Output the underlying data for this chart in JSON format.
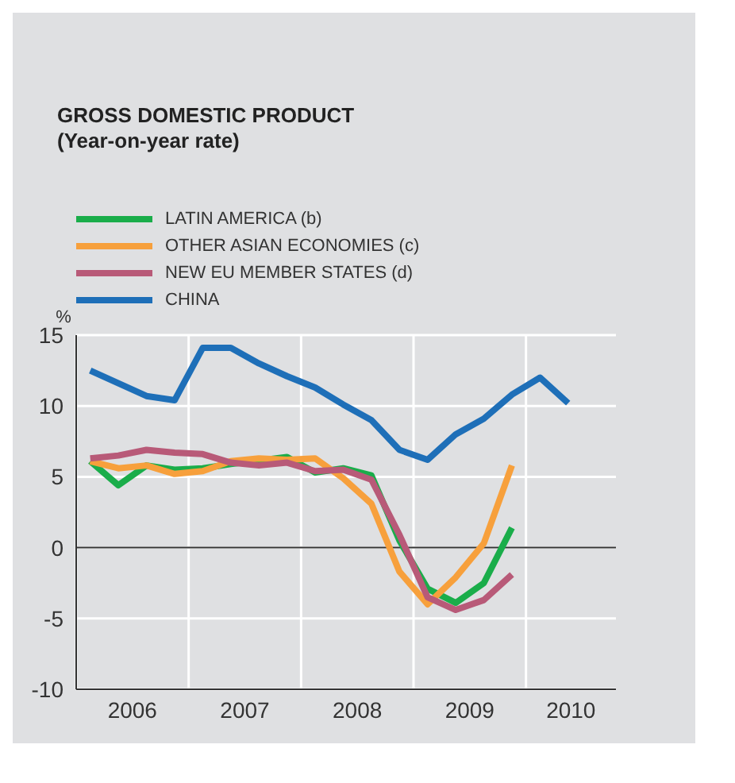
{
  "chart_data": {
    "type": "line",
    "title": "GROSS DOMESTIC PRODUCT",
    "subtitle": "(Year-on-year rate)",
    "ylabel": "%",
    "x": [
      2006.125,
      2006.375,
      2006.625,
      2006.875,
      2007.125,
      2007.375,
      2007.625,
      2007.875,
      2008.125,
      2008.375,
      2008.625,
      2008.875,
      2009.125,
      2009.375,
      2009.625,
      2009.875
    ],
    "series": [
      {
        "name": "LATIN AMERICA (b)",
        "color": "#1aad4a",
        "values": [
          6.1,
          4.4,
          5.8,
          5.5,
          5.6,
          5.9,
          null,
          6.4,
          5.3,
          5.6,
          5.1,
          0.5,
          -2.9,
          -3.9,
          -2.5,
          1.4
        ]
      },
      {
        "name": "OTHER ASIAN ECONOMIES (c)",
        "color": "#f7a03c",
        "values": [
          6.1,
          5.6,
          5.8,
          5.2,
          5.4,
          6.1,
          6.3,
          6.2,
          6.3,
          4.9,
          3.1,
          -1.7,
          -4.0,
          -2.1,
          0.3,
          5.8
        ]
      },
      {
        "name": "NEW EU MEMBER STATES (d)",
        "color": "#b85a78",
        "values": [
          6.3,
          6.5,
          6.9,
          6.7,
          6.6,
          6.0,
          5.8,
          6.0,
          5.4,
          5.5,
          4.8,
          0.9,
          -3.5,
          -4.4,
          -3.7,
          -1.9
        ]
      },
      {
        "name": "CHINA",
        "color": "#1e6fb8",
        "x": [
          2006.125,
          2006.375,
          2006.625,
          2006.875,
          2007.125,
          2007.375,
          2007.625,
          2007.875,
          2008.125,
          2008.375,
          2008.625,
          2008.875,
          2009.125,
          2009.375,
          2009.625,
          2009.875,
          2010.125,
          2010.375
        ],
        "values": [
          12.5,
          11.6,
          10.7,
          10.4,
          14.1,
          14.1,
          13.0,
          12.1,
          11.3,
          10.1,
          9.0,
          6.9,
          6.2,
          8.0,
          9.1,
          10.8,
          12.0,
          10.2
        ]
      }
    ],
    "xlim": [
      2006,
      2010.8
    ],
    "xticks": [
      {
        "value": 2006,
        "label": null
      },
      {
        "value": 2006.5,
        "label": "2006"
      },
      {
        "value": 2007,
        "label": null
      },
      {
        "value": 2007.5,
        "label": "2007"
      },
      {
        "value": 2008,
        "label": null
      },
      {
        "value": 2008.5,
        "label": "2008"
      },
      {
        "value": 2009,
        "label": null
      },
      {
        "value": 2009.5,
        "label": "2009"
      },
      {
        "value": 2010,
        "label": null
      },
      {
        "value": 2010.4,
        "label": "2010"
      }
    ],
    "ylim": [
      -10,
      15
    ],
    "yticks": [
      -10,
      -5,
      0,
      5,
      10,
      15
    ],
    "ref_lines": [
      {
        "axis": "y",
        "value": 0,
        "color": "#333333"
      }
    ],
    "grid": true,
    "legend": "top left",
    "marker": "none",
    "line_style": "solid"
  }
}
